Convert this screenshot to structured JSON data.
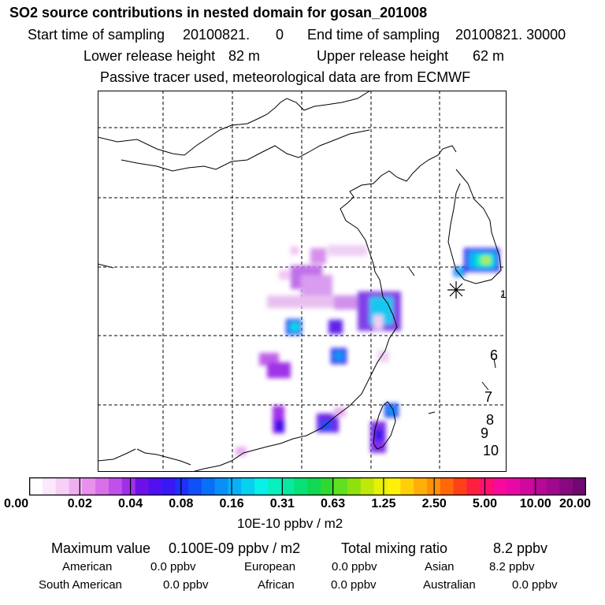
{
  "header": {
    "title": "SO2 source contributions in nested domain for gosan_201008",
    "start_label": "Start time of sampling",
    "start_value": "20100821.",
    "start_hour": "0",
    "end_label": "End time of sampling",
    "end_value": "20100821. 30000",
    "lower_label": "Lower release height",
    "lower_value": "82 m",
    "upper_label": "Upper release height",
    "upper_value": "62 m",
    "note": "Passive tracer used, meteorological data are from ECMWF"
  },
  "map": {
    "markers": [
      "1",
      "6",
      "7",
      "8",
      "9",
      "10"
    ]
  },
  "colorbar": {
    "ticks": [
      "0.00",
      "0.02",
      "0.04",
      "0.08",
      "0.16",
      "0.31",
      "0.63",
      "1.25",
      "2.50",
      "5.00",
      "10.00",
      "20.00"
    ],
    "unit": "10E-10 ppbv / m2",
    "colors": [
      "#ffffff",
      "#fbe8fb",
      "#f7d0f7",
      "#f0b0f0",
      "#e890ec",
      "#d870e8",
      "#c050e8",
      "#a030e8",
      "#7010e8",
      "#5010f0",
      "#3818f4",
      "#2030f8",
      "#1050f8",
      "#0870f8",
      "#0890f8",
      "#08b0f8",
      "#08d0f0",
      "#08f0e8",
      "#08f0c0",
      "#08e8a0",
      "#08e078",
      "#10d850",
      "#30d830",
      "#60e020",
      "#90e010",
      "#c0e808",
      "#e8f008",
      "#fff008",
      "#ffd008",
      "#ffb008",
      "#ff9008",
      "#ff6808",
      "#ff4018",
      "#ff2040",
      "#ff1070",
      "#f8089c",
      "#e808a8",
      "#d008a0",
      "#b80898",
      "#a00890",
      "#880880",
      "#700870"
    ]
  },
  "summary": {
    "max_label": "Maximum value",
    "max_value": "0.100E-09 ppbv / m2",
    "total_label": "Total mixing ratio",
    "total_value": "8.2 ppbv",
    "regions": [
      {
        "name": "American",
        "value": "0.0 ppbv"
      },
      {
        "name": "European",
        "value": "0.0 ppbv"
      },
      {
        "name": "Asian",
        "value": "8.2 ppbv"
      },
      {
        "name": "South American",
        "value": "0.0 ppbv"
      },
      {
        "name": "African",
        "value": "0.0 ppbv"
      },
      {
        "name": "Australian",
        "value": "0.0 ppbv"
      }
    ]
  }
}
